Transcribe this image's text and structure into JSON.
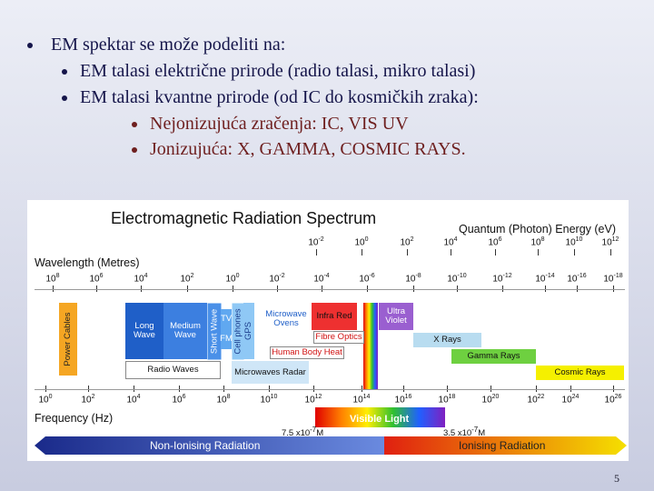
{
  "bullets": [
    {
      "text": "EM spektar se može podeliti na:",
      "items": [
        {
          "text": "EM talasi električne prirode (radio talasi, mikro talasi)"
        },
        {
          "text": "EM talasi kvantne prirode (od IC do kosmičkih zraka):",
          "items": [
            {
              "text": "Nejonizujuća zračenja: IC, VIS UV"
            },
            {
              "text": "Jonizujuća: X, GAMMA, COSMIC RAYS."
            }
          ]
        }
      ]
    }
  ],
  "figure": {
    "title": "Electromagnetic Radiation Spectrum",
    "energy_axis": {
      "label": "Quantum (Photon) Energy (eV)",
      "base": "10",
      "exponents": [
        "-2",
        "0",
        "2",
        "4",
        "6",
        "8",
        "10",
        "12"
      ]
    },
    "wavelength_axis": {
      "label": "Wavelength (Metres)",
      "base": "10",
      "exponents": [
        "8",
        "6",
        "4",
        "2",
        "0",
        "-2",
        "-4",
        "-6",
        "-8",
        "-10",
        "-12",
        "-14",
        "-16",
        "-18"
      ]
    },
    "frequency_axis": {
      "label": "Frequency (Hz)",
      "base": "10",
      "exponents": [
        "0",
        "2",
        "4",
        "6",
        "8",
        "10",
        "12",
        "14",
        "16",
        "18",
        "20",
        "22",
        "24",
        "26"
      ]
    },
    "bands": {
      "power_cables": "Power Cables",
      "long_wave": "Long Wave",
      "medium_wave": "Medium Wave",
      "short_wave": "Short Wave",
      "tv": "TV",
      "fm": "FM",
      "cell_phones": "Cell phones",
      "gps": "GPS",
      "radio_waves": "Radio Waves",
      "microwave_ovens": "Microwave Ovens",
      "microwaves_radar": "Microwaves Radar",
      "infra_red": "Infra Red",
      "ultra_violet": "Ultra Violet",
      "fibre_optics": "Fibre Optics",
      "human_body_heat": "Human Body Heat",
      "x_rays": "X Rays",
      "gamma_rays": "Gamma Rays",
      "cosmic_rays": "Cosmic Rays",
      "visible_light": "Visible Light"
    },
    "wavelength_limits": [
      {
        "mantissa": "7.5 x10",
        "exp": "-7",
        "unit": "M"
      },
      {
        "mantissa": "3.5 x10",
        "exp": "-7",
        "unit": "M"
      }
    ],
    "non_ionising": "Non-Ionising Radiation",
    "ionising": "Ionising Radiation"
  },
  "page_number": "5"
}
